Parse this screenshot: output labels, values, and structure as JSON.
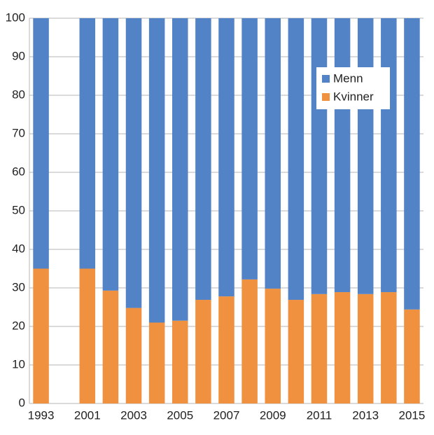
{
  "chart_data": {
    "type": "stacked_bar",
    "categories": [
      "1993",
      null,
      "2001",
      null,
      "2003",
      null,
      "2005",
      null,
      "2007",
      null,
      "2009",
      null,
      "2011",
      null,
      "2013",
      null,
      "2015"
    ],
    "series": [
      {
        "name": "Kvinner",
        "color": "#f0913f",
        "values": [
          35,
          null,
          35,
          29.3,
          24.8,
          21,
          21.5,
          26.9,
          27.8,
          32.2,
          29.8,
          26.9,
          28.4,
          28.9,
          28.4,
          28.9,
          24.4
        ]
      },
      {
        "name": "Menn",
        "color": "#5183c6",
        "values": [
          65,
          null,
          65,
          70.7,
          75.2,
          79,
          78.5,
          73.1,
          72.2,
          67.8,
          70.2,
          73.1,
          71.6,
          71.1,
          71.6,
          71.1,
          75.6
        ]
      }
    ],
    "ylim": [
      0,
      100
    ],
    "yticks": [
      0,
      10,
      20,
      30,
      40,
      50,
      60,
      70,
      80,
      90,
      100
    ],
    "grid": true
  }
}
